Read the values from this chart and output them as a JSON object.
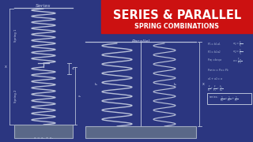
{
  "bg_color": "#2b3680",
  "title_bg_color": "#cc1111",
  "title_text": "SERIES & PARALLEL",
  "subtitle_text": "SPRING COMBINATIONS",
  "title_color": "#ffffff",
  "subtitle_color": "#ffffff",
  "spring_color": "#b8c0d8",
  "label_color": "#c8d0e8",
  "formula_color": "#b8c8e0",
  "series_label": "Series",
  "parallel_label": "Parallel",
  "base_facecolor": "#5a6888",
  "base_edgecolor": "#a0aac0"
}
